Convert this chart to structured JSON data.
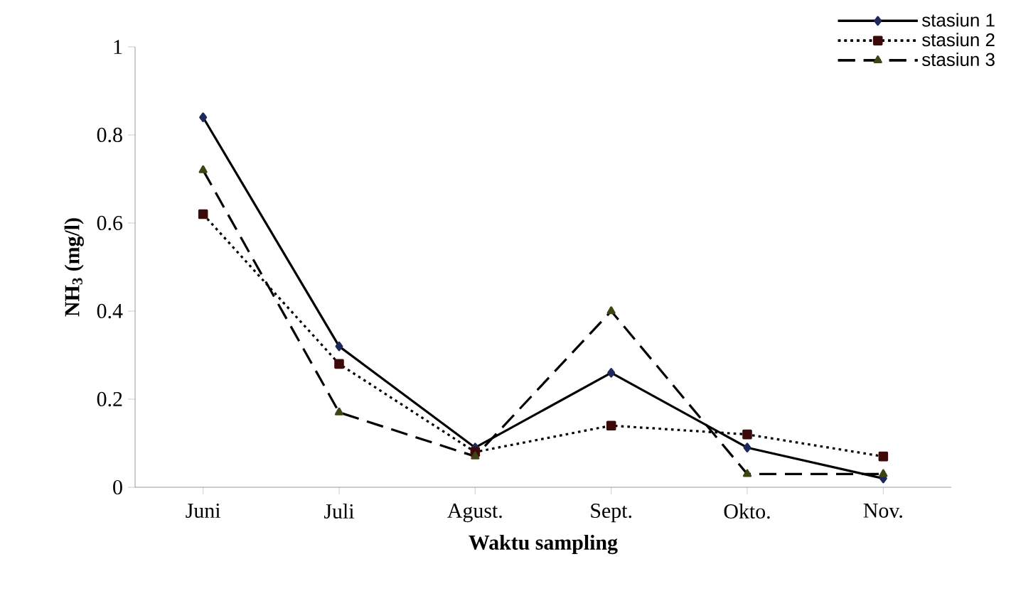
{
  "chart_data": {
    "type": "line",
    "xlabel": "Waktu sampling",
    "ylabel": "NH$_{3}$ (mg/l)",
    "categories": [
      "Juni",
      "Juli",
      "Agust.",
      "Sept.",
      "Okto.",
      "Nov."
    ],
    "series": [
      {
        "name": "stasiun 1",
        "color": "#000000",
        "marker": "diamond",
        "line_style": "solid",
        "values": [
          0.84,
          0.32,
          0.09,
          0.26,
          0.09,
          0.02
        ]
      },
      {
        "name": "stasiun 2",
        "color": "#000000",
        "marker": "square",
        "line_style": "dotted",
        "values": [
          0.62,
          0.28,
          0.08,
          0.14,
          0.12,
          0.07
        ]
      },
      {
        "name": "stasiun 3",
        "color": "#000000",
        "marker": "triangle",
        "line_style": "dashed",
        "values": [
          0.72,
          0.17,
          0.07,
          0.4,
          0.03,
          0.03
        ]
      }
    ],
    "ylim": [
      0,
      1
    ],
    "yticks": [
      0,
      0.2,
      0.4,
      0.6,
      0.8,
      1
    ],
    "grid": false,
    "legend": "top right"
  }
}
